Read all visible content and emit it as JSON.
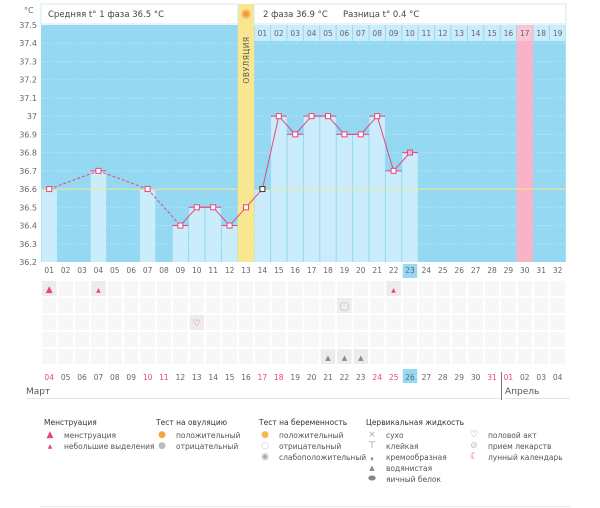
{
  "header": {
    "unit": "°C",
    "phase1_label": "Средняя t° 1 фаза 36.5 °C",
    "phase2_label": "2 фаза 36.9 °C",
    "difference_label": "Разница t° 0.4 °C",
    "ovulation_label": "ОВУЛЯЦИЯ"
  },
  "chart_data": {
    "type": "bar+line",
    "title": "",
    "xlabel": "День цикла",
    "ylabel": "°C",
    "ylim": [
      36.2,
      37.5
    ],
    "yticks": [
      "37.5",
      "37.4",
      "37.3",
      "37.2",
      "37.1",
      "37",
      "36.9",
      "36.8",
      "36.7",
      "36.6",
      "36.5",
      "36.4",
      "36.3",
      "36.2"
    ],
    "cycle_days": [
      "01",
      "02",
      "03",
      "04",
      "05",
      "06",
      "07",
      "08",
      "09",
      "10",
      "11",
      "12",
      "13",
      "14",
      "15",
      "16",
      "17",
      "18",
      "19",
      "20",
      "21",
      "22",
      "23",
      "24",
      "25",
      "26",
      "27",
      "28",
      "29",
      "30",
      "31",
      "32"
    ],
    "phase2_days": [
      "01",
      "02",
      "03",
      "04",
      "05",
      "06",
      "07",
      "08",
      "09",
      "10",
      "11",
      "12",
      "13",
      "14",
      "15",
      "16",
      "17",
      "18",
      "19"
    ],
    "temperatures": [
      {
        "day": 1,
        "value": 36.6
      },
      {
        "day": 4,
        "value": 36.7
      },
      {
        "day": 7,
        "value": 36.6
      },
      {
        "day": 9,
        "value": 36.4
      },
      {
        "day": 10,
        "value": 36.5
      },
      {
        "day": 11,
        "value": 36.5
      },
      {
        "day": 12,
        "value": 36.4
      },
      {
        "day": 13,
        "value": 36.5
      },
      {
        "day": 14,
        "value": 36.6
      },
      {
        "day": 15,
        "value": 37.0
      },
      {
        "day": 16,
        "value": 36.9
      },
      {
        "day": 17,
        "value": 37.0
      },
      {
        "day": 18,
        "value": 37.0
      },
      {
        "day": 19,
        "value": 36.9
      },
      {
        "day": 20,
        "value": 36.9
      },
      {
        "day": 21,
        "value": 37.0
      },
      {
        "day": 22,
        "value": 36.7
      },
      {
        "day": 23,
        "value": 36.8
      }
    ],
    "coverline": 36.6,
    "ovulation_day": 13,
    "expected_period_day": 30,
    "today_day": 23,
    "colors": {
      "background": "#94d8f2",
      "bar": "#cbecfa",
      "line": "#e8457f",
      "coverline": "#f5e88a",
      "ovulation": "#f8e790",
      "period": "#f9b3c6",
      "today": "#94d8f2"
    }
  },
  "calendar": {
    "dates": [
      {
        "d": "04",
        "red": true
      },
      {
        "d": "05",
        "red": false
      },
      {
        "d": "06",
        "red": false
      },
      {
        "d": "07",
        "red": false
      },
      {
        "d": "08",
        "red": false
      },
      {
        "d": "09",
        "red": false
      },
      {
        "d": "10",
        "red": true
      },
      {
        "d": "11",
        "red": true
      },
      {
        "d": "12",
        "red": false
      },
      {
        "d": "13",
        "red": false
      },
      {
        "d": "14",
        "red": false
      },
      {
        "d": "15",
        "red": false
      },
      {
        "d": "16",
        "red": false
      },
      {
        "d": "17",
        "red": true
      },
      {
        "d": "18",
        "red": true
      },
      {
        "d": "19",
        "red": false
      },
      {
        "d": "20",
        "red": false
      },
      {
        "d": "21",
        "red": false
      },
      {
        "d": "22",
        "red": false
      },
      {
        "d": "23",
        "red": false
      },
      {
        "d": "24",
        "red": true
      },
      {
        "d": "25",
        "red": true
      },
      {
        "d": "26",
        "red": false,
        "today": true
      },
      {
        "d": "27",
        "red": false
      },
      {
        "d": "28",
        "red": false
      },
      {
        "d": "29",
        "red": false
      },
      {
        "d": "30",
        "red": false
      },
      {
        "d": "31",
        "red": true
      },
      {
        "d": "01",
        "red": true
      },
      {
        "d": "02",
        "red": false
      },
      {
        "d": "03",
        "red": false
      },
      {
        "d": "04",
        "red": false
      }
    ],
    "month1": "Март",
    "month2": "Апрель",
    "symptoms": [
      {
        "day": 1,
        "row": 0,
        "icon": "menstruation"
      },
      {
        "day": 4,
        "row": 0,
        "icon": "spotting"
      },
      {
        "day": 22,
        "row": 0,
        "icon": "spotting"
      },
      {
        "day": 19,
        "row": 1,
        "icon": "pregnancy-negative"
      },
      {
        "day": 10,
        "row": 2,
        "icon": "intercourse"
      },
      {
        "day": 18,
        "row": 4,
        "icon": "watery"
      },
      {
        "day": 19,
        "row": 4,
        "icon": "watery"
      },
      {
        "day": 20,
        "row": 4,
        "icon": "watery"
      }
    ]
  },
  "legend": {
    "menstruation": {
      "title": "Менструация",
      "items": [
        "менструация",
        "небольшие выделения"
      ]
    },
    "ovulation_test": {
      "title": "Тест на овуляцию",
      "items": [
        "положительный",
        "отрицательный"
      ]
    },
    "pregnancy_test": {
      "title": "Тест на беременность",
      "items": [
        "положительный",
        "отрицательный",
        "слабоположительный"
      ]
    },
    "cervical_fluid": {
      "title": "Цервикальная жидкость",
      "items": [
        "сухо",
        "клейкая",
        "кремообразная",
        "водянистая",
        "яичный белок"
      ]
    },
    "other": {
      "items": [
        "половой акт",
        "прием лекарств",
        "лунный календарь"
      ]
    }
  }
}
